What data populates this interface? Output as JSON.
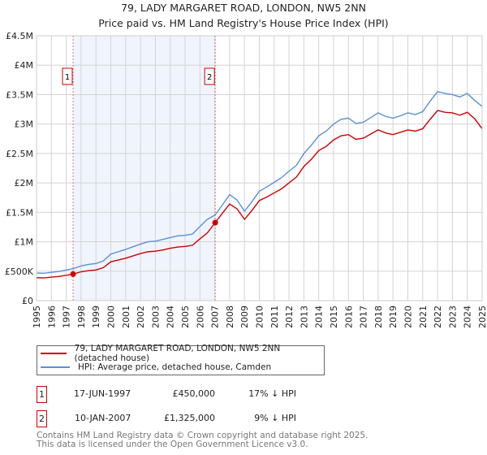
{
  "chart_data": {
    "type": "line",
    "title": "79, LADY MARGARET ROAD, LONDON, NW5 2NN",
    "subtitle": "Price paid vs. HM Land Registry's House Price Index (HPI)",
    "xlim": [
      1995,
      2025
    ],
    "ylim": [
      0,
      4500000
    ],
    "y_ticks": [
      {
        "v": 0,
        "label": "£0"
      },
      {
        "v": 500000,
        "label": "£500K"
      },
      {
        "v": 1000000,
        "label": "£1M"
      },
      {
        "v": 1500000,
        "label": "£1.5M"
      },
      {
        "v": 2000000,
        "label": "£2M"
      },
      {
        "v": 2500000,
        "label": "£2.5M"
      },
      {
        "v": 3000000,
        "label": "£3M"
      },
      {
        "v": 3500000,
        "label": "£3.5M"
      },
      {
        "v": 4000000,
        "label": "£4M"
      },
      {
        "v": 4500000,
        "label": "£4.5M"
      }
    ],
    "x_ticks": [
      "1995",
      "1996",
      "1997",
      "1998",
      "1999",
      "2000",
      "2001",
      "2002",
      "2003",
      "2004",
      "2005",
      "2006",
      "2007",
      "2008",
      "2009",
      "2010",
      "2011",
      "2012",
      "2013",
      "2014",
      "2015",
      "2016",
      "2017",
      "2018",
      "2019",
      "2020",
      "2021",
      "2022",
      "2023",
      "2024",
      "2025"
    ],
    "grid": true,
    "shaded_range": [
      1997.46,
      2007.03
    ],
    "series": [
      {
        "name": "79, LADY MARGARET ROAD, LONDON, NW5 2NN (detached house)",
        "color": "#cc0000",
        "x": [
          1995,
          1995.5,
          1996,
          1996.5,
          1997,
          1997.46,
          1998,
          1998.5,
          1999,
          1999.5,
          2000,
          2000.5,
          2001,
          2001.5,
          2002,
          2002.5,
          2003,
          2003.5,
          2004,
          2004.5,
          2005,
          2005.5,
          2006,
          2006.5,
          2007.03,
          2007.5,
          2008,
          2008.5,
          2009,
          2009.5,
          2010,
          2010.5,
          2011,
          2011.5,
          2012,
          2012.5,
          2013,
          2013.5,
          2014,
          2014.5,
          2015,
          2015.5,
          2016,
          2016.5,
          2017,
          2017.5,
          2018,
          2018.5,
          2019,
          2019.5,
          2020,
          2020.5,
          2021,
          2021.5,
          2022,
          2022.5,
          2023,
          2023.5,
          2024,
          2024.5,
          2025
        ],
        "y": [
          390000,
          385000,
          400000,
          410000,
          430000,
          450000,
          490000,
          510000,
          520000,
          560000,
          660000,
          690000,
          720000,
          760000,
          800000,
          830000,
          840000,
          860000,
          890000,
          910000,
          920000,
          940000,
          1050000,
          1150000,
          1325000,
          1480000,
          1640000,
          1560000,
          1380000,
          1530000,
          1700000,
          1760000,
          1830000,
          1900000,
          2000000,
          2100000,
          2280000,
          2400000,
          2550000,
          2620000,
          2730000,
          2800000,
          2820000,
          2740000,
          2760000,
          2830000,
          2900000,
          2850000,
          2820000,
          2860000,
          2900000,
          2880000,
          2920000,
          3080000,
          3230000,
          3200000,
          3190000,
          3150000,
          3200000,
          3090000,
          2920000
        ]
      },
      {
        "name": "HPI: Average price, detached house, Camden",
        "color": "#5b8fd6",
        "x": [
          1995,
          1995.5,
          1996,
          1996.5,
          1997,
          1997.46,
          1998,
          1998.5,
          1999,
          1999.5,
          2000,
          2000.5,
          2001,
          2001.5,
          2002,
          2002.5,
          2003,
          2003.5,
          2004,
          2004.5,
          2005,
          2005.5,
          2006,
          2006.5,
          2007.03,
          2007.5,
          2008,
          2008.5,
          2009,
          2009.5,
          2010,
          2010.5,
          2011,
          2011.5,
          2012,
          2012.5,
          2013,
          2013.5,
          2014,
          2014.5,
          2015,
          2015.5,
          2016,
          2016.5,
          2017,
          2017.5,
          2018,
          2018.5,
          2019,
          2019.5,
          2020,
          2020.5,
          2021,
          2021.5,
          2022,
          2022.5,
          2023,
          2023.5,
          2024,
          2024.5,
          2025
        ],
        "y": [
          470000,
          465000,
          480000,
          495000,
          520000,
          542000,
          590000,
          615000,
          630000,
          675000,
          790000,
          830000,
          870000,
          915000,
          960000,
          1000000,
          1010000,
          1040000,
          1070000,
          1100000,
          1110000,
          1130000,
          1260000,
          1380000,
          1456000,
          1620000,
          1800000,
          1710000,
          1520000,
          1680000,
          1860000,
          1930000,
          2010000,
          2090000,
          2200000,
          2300000,
          2500000,
          2640000,
          2800000,
          2880000,
          3000000,
          3080000,
          3100000,
          3010000,
          3030000,
          3110000,
          3190000,
          3130000,
          3100000,
          3140000,
          3190000,
          3160000,
          3210000,
          3390000,
          3550000,
          3520000,
          3500000,
          3460000,
          3520000,
          3400000,
          3300000
        ]
      }
    ],
    "annotations": [
      {
        "id": "1",
        "x": 1997.46,
        "y": 450000
      },
      {
        "id": "2",
        "x": 2007.03,
        "y": 1325000
      }
    ]
  },
  "sales": [
    {
      "id": "1",
      "date": "17-JUN-1997",
      "price": "£450,000",
      "hpi": "17% ↓ HPI"
    },
    {
      "id": "2",
      "date": "10-JAN-2007",
      "price": "£1,325,000",
      "hpi": "9% ↓ HPI"
    }
  ],
  "footer": {
    "line1": "Contains HM Land Registry data © Crown copyright and database right 2025.",
    "line2": "This data is licensed under the Open Government Licence v3.0."
  }
}
